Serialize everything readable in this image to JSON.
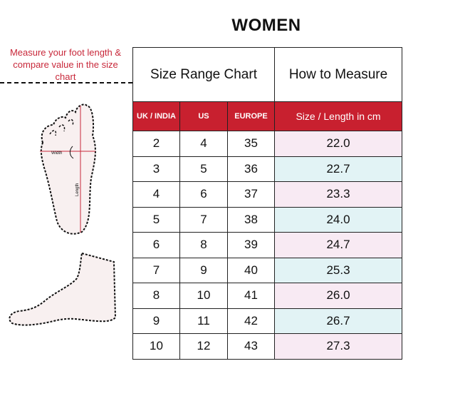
{
  "title": "WOMEN",
  "instruction": "Measure your foot length & compare value in the size chart",
  "foot_labels": {
    "width": "Width",
    "length": "Length"
  },
  "table": {
    "header_left": "Size Range Chart",
    "header_right": "How to Measure",
    "columns": [
      "UK / INDIA",
      "US",
      "EUROPE",
      "Size / Length in cm"
    ],
    "rows": [
      [
        "2",
        "4",
        "35",
        "22.0"
      ],
      [
        "3",
        "5",
        "36",
        "22.7"
      ],
      [
        "4",
        "6",
        "37",
        "23.3"
      ],
      [
        "5",
        "7",
        "38",
        "24.0"
      ],
      [
        "6",
        "8",
        "39",
        "24.7"
      ],
      [
        "7",
        "9",
        "40",
        "25.3"
      ],
      [
        "8",
        "10",
        "41",
        "26.0"
      ],
      [
        "9",
        "11",
        "42",
        "26.7"
      ],
      [
        "10",
        "12",
        "43",
        "27.3"
      ]
    ]
  },
  "colors": {
    "accent": "#c8202f",
    "row_pink": "#f8eaf3",
    "row_blue": "#e2f3f5"
  }
}
